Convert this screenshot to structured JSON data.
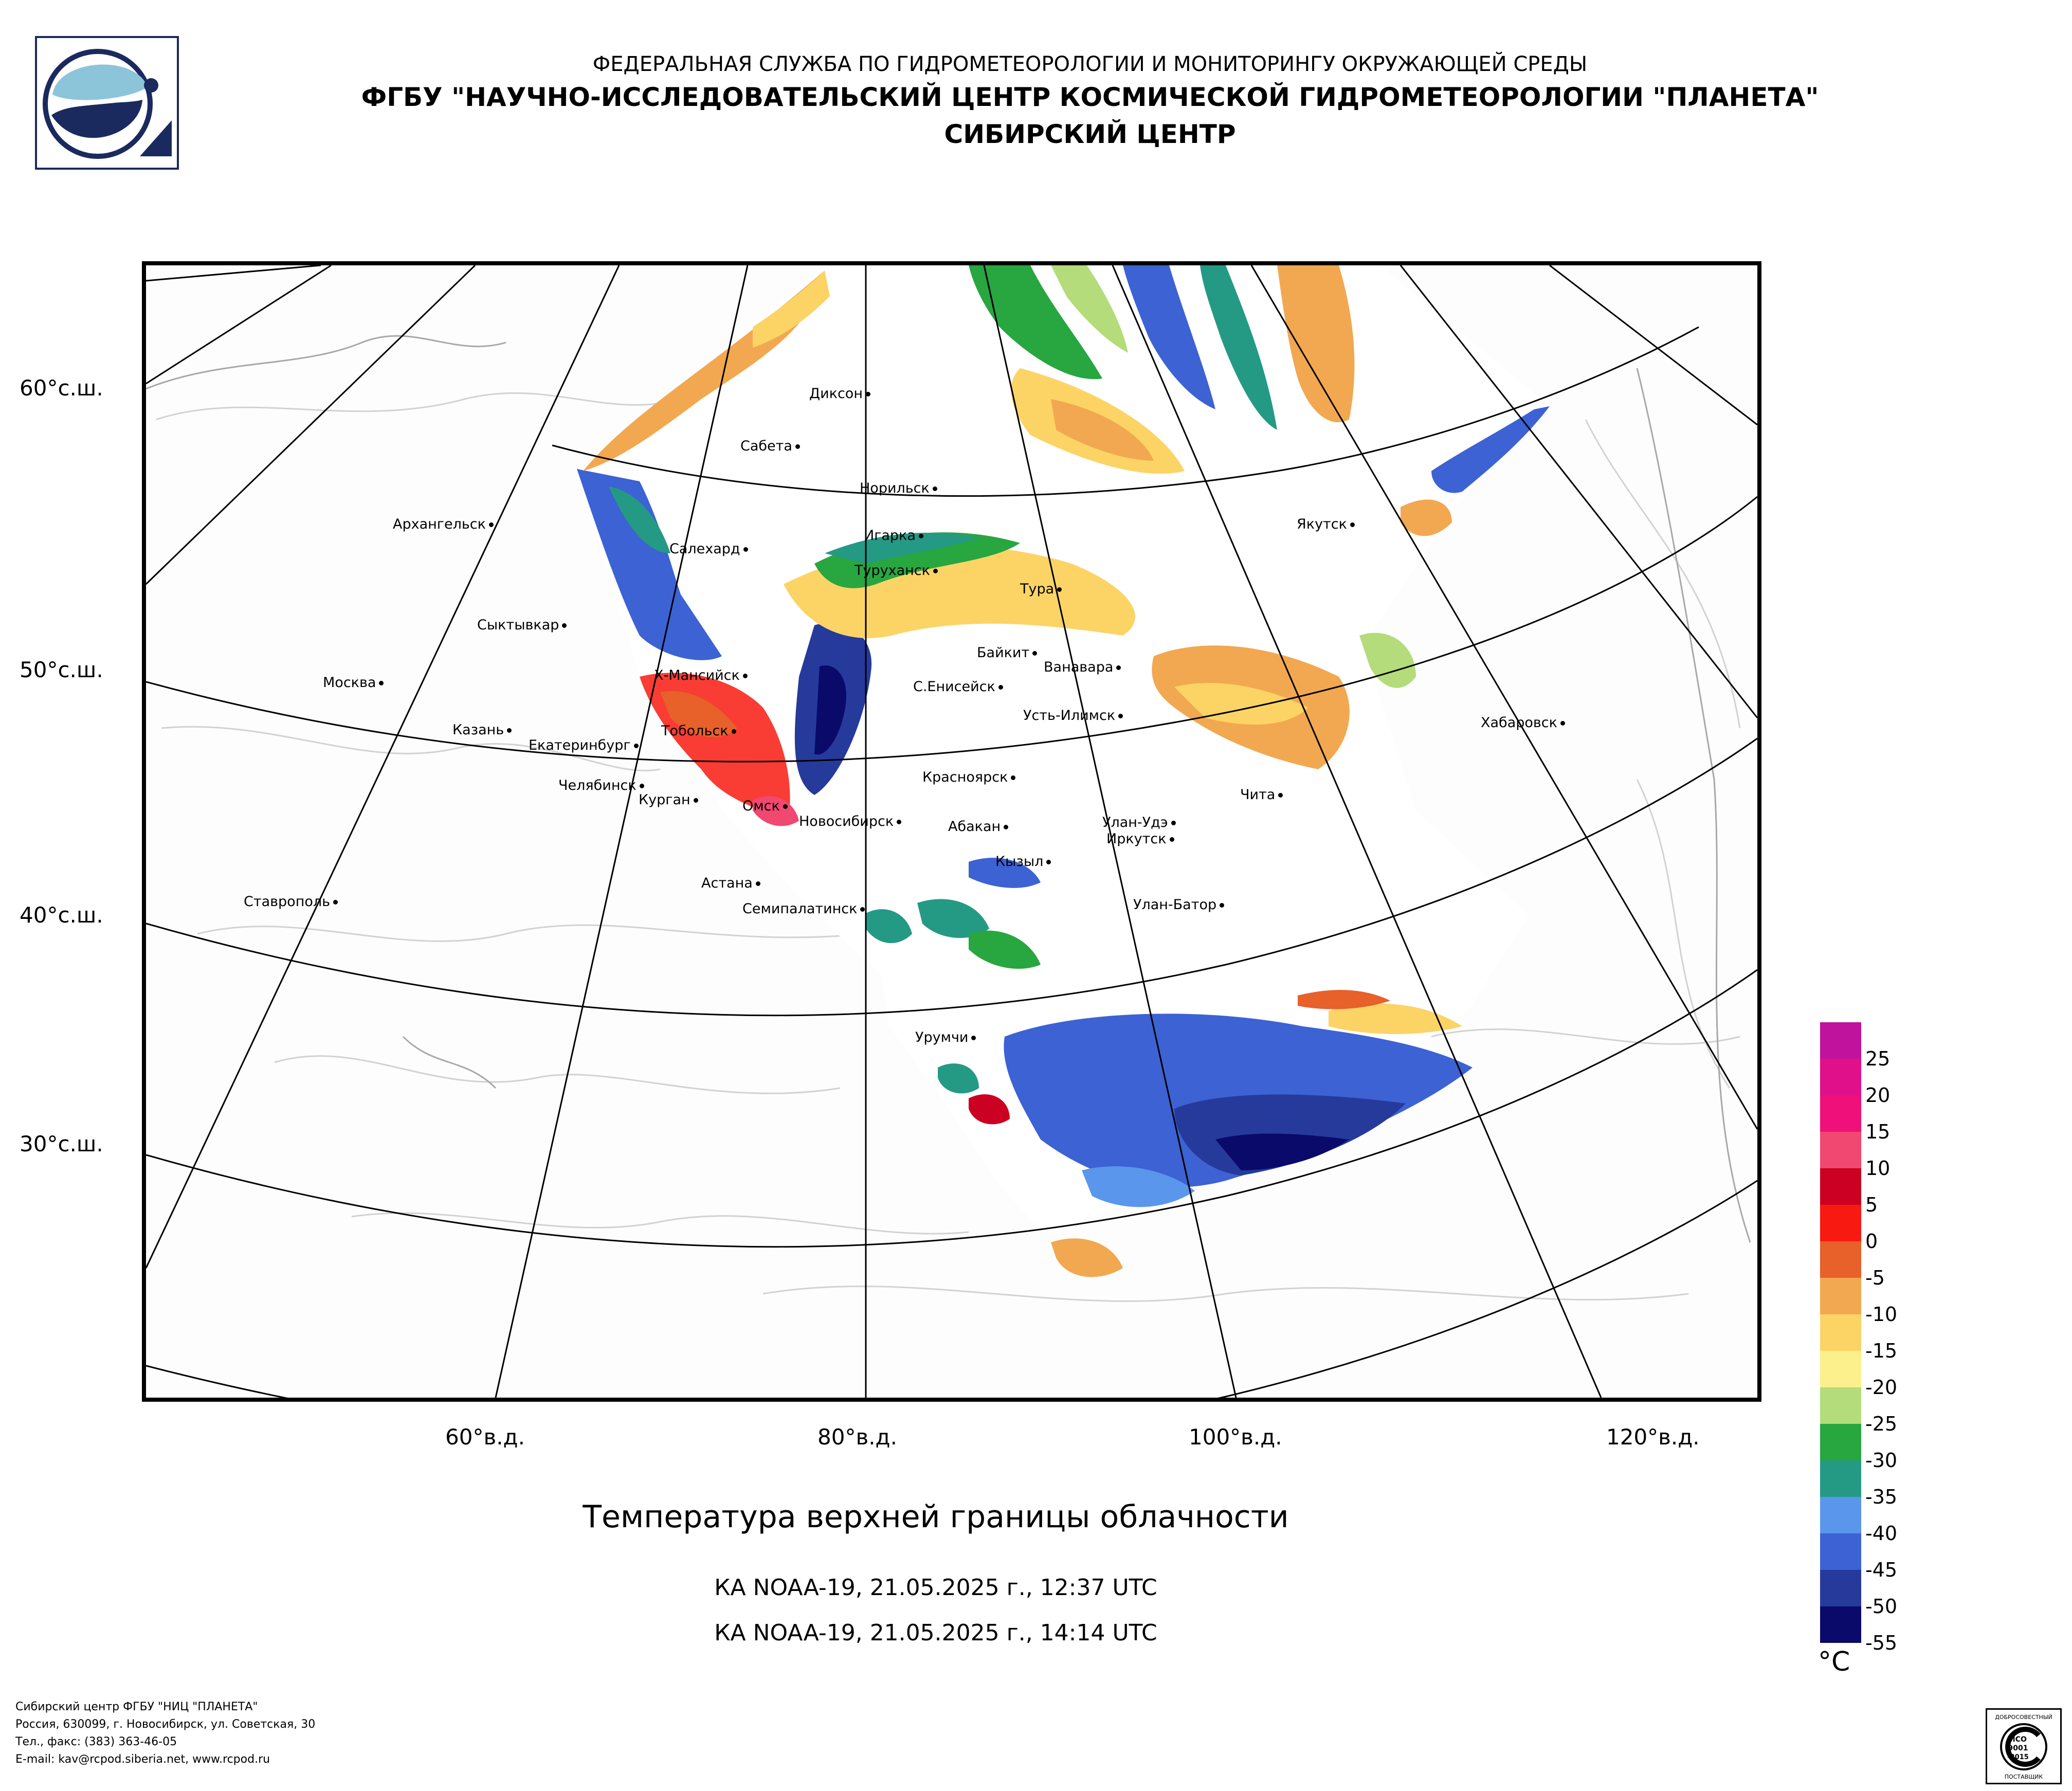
{
  "header": {
    "line1": "ФЕДЕРАЛЬНАЯ СЛУЖБА ПО ГИДРОМЕТЕОРОЛОГИИ И МОНИТОРИНГУ ОКРУЖАЮЩЕЙ СРЕДЫ",
    "line2": "ФГБУ \"НАУЧНО-ИССЛЕДОВАТЕЛЬСКИЙ ЦЕНТР КОСМИЧЕСКОЙ ГИДРОМЕТЕОРОЛОГИИ \"ПЛАНЕТА\"",
    "line3": "СИБИРСКИЙ ЦЕНТР"
  },
  "map": {
    "lat_labels": [
      "60°с.ш.",
      "50°с.ш.",
      "40°с.ш.",
      "30°с.ш."
    ],
    "lon_labels": [
      "60°в.д.",
      "80°в.д.",
      "100°в.д.",
      "120°в.д."
    ],
    "cities": [
      "Диксон",
      "Сабета",
      "Норильск",
      "Архангельск",
      "Игарка",
      "Салехард",
      "Туруханск",
      "Тура",
      "Якутск",
      "Сыктывкар",
      "Байкит",
      "Ванавара",
      "Москва",
      "Х-Мансийск",
      "С.Енисейск",
      "Усть-Илимск",
      "Казань",
      "Тобольск",
      "Екатеринбург",
      "Хабаровск",
      "Челябинск",
      "Курган",
      "Красноярск",
      "Чита",
      "Омск",
      "Новосибирск",
      "Абакан",
      "Улан-Удэ",
      "Иркутск",
      "Кызыл",
      "Астана",
      "Ставрополь",
      "Семипалатинск",
      "Улан-Батор",
      "Урумчи"
    ]
  },
  "legend": {
    "labels": [
      "25",
      "20",
      "15",
      "10",
      "5",
      "0",
      "-5",
      "-10",
      "-15",
      "-20",
      "-25",
      "-30",
      "-35",
      "-40",
      "-45",
      "-50",
      "-55"
    ],
    "colors": [
      "#c0129c",
      "#e0108a",
      "#f0107a",
      "#f04870",
      "#cc0022",
      "#f81a10",
      "#e8602a",
      "#f2a850",
      "#fcd466",
      "#fcf08c",
      "#b4dc7a",
      "#28a640",
      "#249a84",
      "#5a96ec",
      "#3c62d4",
      "#263a9c",
      "#0a0a6a"
    ],
    "unit": "°C"
  },
  "title": "Температура верхней границы облачности",
  "passes": [
    "КА NOAA-19, 21.05.2025 г., 12:37 UTC",
    "КА NOAA-19, 21.05.2025 г., 14:14 UTC"
  ],
  "footer": {
    "org": "Сибирский центр ФГБУ \"НИЦ \"ПЛАНЕТА\"",
    "address": "Россия, 630099, г. Новосибирск, ул. Советская, 30",
    "phone": "Тел., факс: (383) 363-46-05",
    "email": "E-mail: kav@rcpod.siberia.net, www.rcpod.ru"
  },
  "iso_badge": {
    "top": "ДОБРОСОВЕСТНЫЙ",
    "line1": "ИСО",
    "line2": "9001",
    "line3": "-2015",
    "bottom": "ПОСТАВЩИК"
  }
}
